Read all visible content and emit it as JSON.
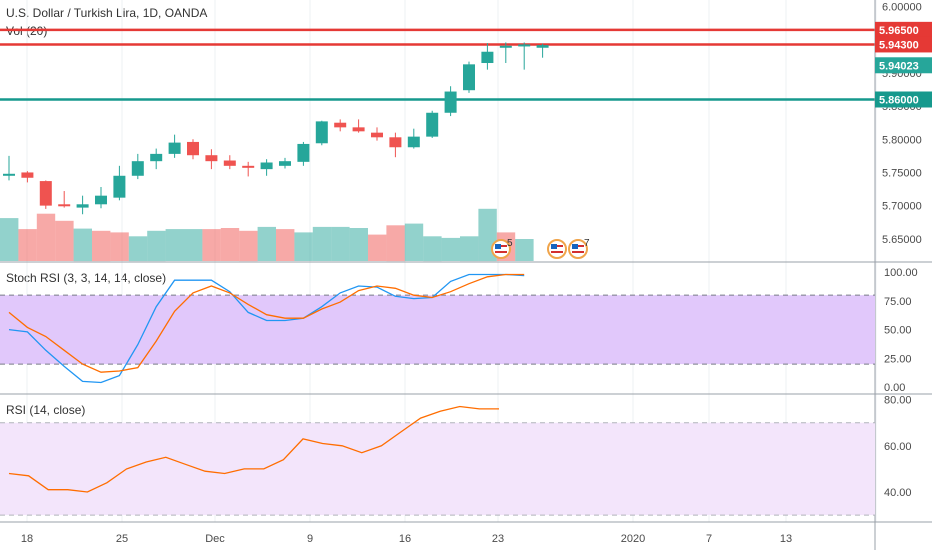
{
  "header": {
    "title": "U.S. Dollar / Turkish Lira, 1D, OANDA",
    "volume_label": "Vol (20)",
    "stoch_label": "Stoch RSI (3, 3, 14, 14, close)",
    "rsi_label": "RSI (14, close)"
  },
  "colors": {
    "up": "#26a69a",
    "down": "#ef5350",
    "resistance": "#e53935",
    "support": "#16998d",
    "stoch_k": "#2196f3",
    "stoch_d": "#ff6d00",
    "rsi": "#ff6d00",
    "stoch_band": "#e1c8fb",
    "rsi_band": "#f3e5fb"
  },
  "events": [
    {
      "icon": "us-flag-icon",
      "count": "5"
    },
    {
      "icon": "us-flag-icon",
      "count": ""
    },
    {
      "icon": "us-flag-icon",
      "count": "7"
    }
  ],
  "chart_data": [
    {
      "type": "candlestick",
      "title": "U.S. Dollar / Turkish Lira, 1D, OANDA",
      "x_ticks": [
        "18",
        "25",
        "Dec",
        "9",
        "16",
        "23",
        "2020",
        "7",
        "13"
      ],
      "y_ticks": [
        "6.00000",
        "5.95000",
        "5.90000",
        "5.85000",
        "5.80000",
        "5.75000",
        "5.70000",
        "5.65000"
      ],
      "ylim": [
        5.615,
        6.01
      ],
      "candles": [
        {
          "o": 5.748,
          "h": 5.775,
          "l": 5.738,
          "c": 5.748
        },
        {
          "o": 5.75,
          "h": 5.752,
          "l": 5.735,
          "c": 5.742
        },
        {
          "o": 5.737,
          "h": 5.738,
          "l": 5.695,
          "c": 5.7
        },
        {
          "o": 5.702,
          "h": 5.722,
          "l": 5.697,
          "c": 5.701
        },
        {
          "o": 5.697,
          "h": 5.715,
          "l": 5.687,
          "c": 5.702
        },
        {
          "o": 5.702,
          "h": 5.728,
          "l": 5.696,
          "c": 5.715
        },
        {
          "o": 5.712,
          "h": 5.76,
          "l": 5.708,
          "c": 5.745
        },
        {
          "o": 5.745,
          "h": 5.778,
          "l": 5.74,
          "c": 5.767
        },
        {
          "o": 5.767,
          "h": 5.786,
          "l": 5.755,
          "c": 5.778
        },
        {
          "o": 5.778,
          "h": 5.807,
          "l": 5.772,
          "c": 5.795
        },
        {
          "o": 5.796,
          "h": 5.8,
          "l": 5.77,
          "c": 5.776
        },
        {
          "o": 5.776,
          "h": 5.785,
          "l": 5.755,
          "c": 5.767
        },
        {
          "o": 5.768,
          "h": 5.776,
          "l": 5.755,
          "c": 5.76
        },
        {
          "o": 5.76,
          "h": 5.766,
          "l": 5.744,
          "c": 5.757
        },
        {
          "o": 5.755,
          "h": 5.77,
          "l": 5.745,
          "c": 5.765
        },
        {
          "o": 5.76,
          "h": 5.772,
          "l": 5.756,
          "c": 5.767
        },
        {
          "o": 5.766,
          "h": 5.796,
          "l": 5.76,
          "c": 5.793
        },
        {
          "o": 5.794,
          "h": 5.828,
          "l": 5.791,
          "c": 5.827
        },
        {
          "o": 5.825,
          "h": 5.83,
          "l": 5.812,
          "c": 5.818
        },
        {
          "o": 5.818,
          "h": 5.83,
          "l": 5.81,
          "c": 5.812
        },
        {
          "o": 5.81,
          "h": 5.818,
          "l": 5.798,
          "c": 5.803
        },
        {
          "o": 5.803,
          "h": 5.81,
          "l": 5.773,
          "c": 5.788
        },
        {
          "o": 5.788,
          "h": 5.816,
          "l": 5.786,
          "c": 5.804
        },
        {
          "o": 5.804,
          "h": 5.843,
          "l": 5.802,
          "c": 5.84
        },
        {
          "o": 5.84,
          "h": 5.88,
          "l": 5.835,
          "c": 5.872
        },
        {
          "o": 5.874,
          "h": 5.917,
          "l": 5.87,
          "c": 5.913
        },
        {
          "o": 5.915,
          "h": 5.945,
          "l": 5.905,
          "c": 5.932
        },
        {
          "o": 5.94,
          "h": 5.946,
          "l": 5.915,
          "c": 5.941
        },
        {
          "o": 5.941,
          "h": 5.946,
          "l": 5.905,
          "c": 5.943
        },
        {
          "o": 5.938,
          "h": 5.944,
          "l": 5.923,
          "c": 5.942
        }
      ],
      "levels": [
        {
          "value": 5.965,
          "label": "5.96500",
          "style": "solid"
        },
        {
          "value": 5.943,
          "label": "5.94300",
          "style": "solid"
        },
        {
          "value": 5.86,
          "label": "5.86000",
          "style": "solid"
        }
      ],
      "last_price": {
        "value": 5.94023,
        "label": "5.94023"
      }
    },
    {
      "type": "bar",
      "name": "Vol (20)",
      "values": [
        78,
        58,
        86,
        73,
        59,
        55,
        52,
        45,
        55,
        58,
        58,
        58,
        60,
        55,
        62,
        58,
        52,
        62,
        62,
        60,
        48,
        65,
        68,
        45,
        42,
        45,
        95,
        52,
        40
      ],
      "directions": [
        "up",
        "down",
        "down",
        "down",
        "up",
        "down",
        "down",
        "up",
        "up",
        "up",
        "up",
        "down",
        "down",
        "down",
        "up",
        "down",
        "up",
        "up",
        "up",
        "up",
        "down",
        "down",
        "up",
        "up",
        "up",
        "up",
        "up",
        "down",
        "up"
      ]
    },
    {
      "type": "line",
      "title": "Stoch RSI (3, 3, 14, 14, close)",
      "y_ticks": [
        "100.00",
        "75.00",
        "50.00",
        "25.00",
        "0.00"
      ],
      "ylim": [
        -6,
        108
      ],
      "band": [
        20,
        80
      ],
      "series": [
        {
          "key": "k",
          "values": [
            50,
            48,
            32,
            18,
            5,
            4,
            10,
            37,
            70,
            93,
            93,
            93,
            83,
            65,
            58,
            58,
            60,
            70,
            82,
            88,
            87,
            79,
            77,
            78,
            92,
            98,
            98,
            98,
            97
          ]
        },
        {
          "key": "d",
          "values": [
            65,
            52,
            44,
            32,
            20,
            13,
            14,
            17,
            40,
            66,
            82,
            88,
            82,
            72,
            63,
            60,
            60,
            68,
            74,
            84,
            88,
            86,
            80,
            78,
            83,
            90,
            96,
            98,
            98
          ]
        }
      ]
    },
    {
      "type": "line",
      "title": "RSI (14, close)",
      "y_ticks": [
        "80.00",
        "60.00",
        "40.00"
      ],
      "ylim": [
        27,
        82
      ],
      "band": [
        30,
        70
      ],
      "series": [
        {
          "key": "rsi",
          "values": [
            48,
            47,
            41,
            41,
            40,
            44,
            50,
            53,
            55,
            52,
            49,
            48,
            50,
            50,
            54,
            63,
            61,
            60,
            57,
            60,
            66,
            72,
            75,
            77,
            76,
            76
          ]
        }
      ]
    }
  ]
}
